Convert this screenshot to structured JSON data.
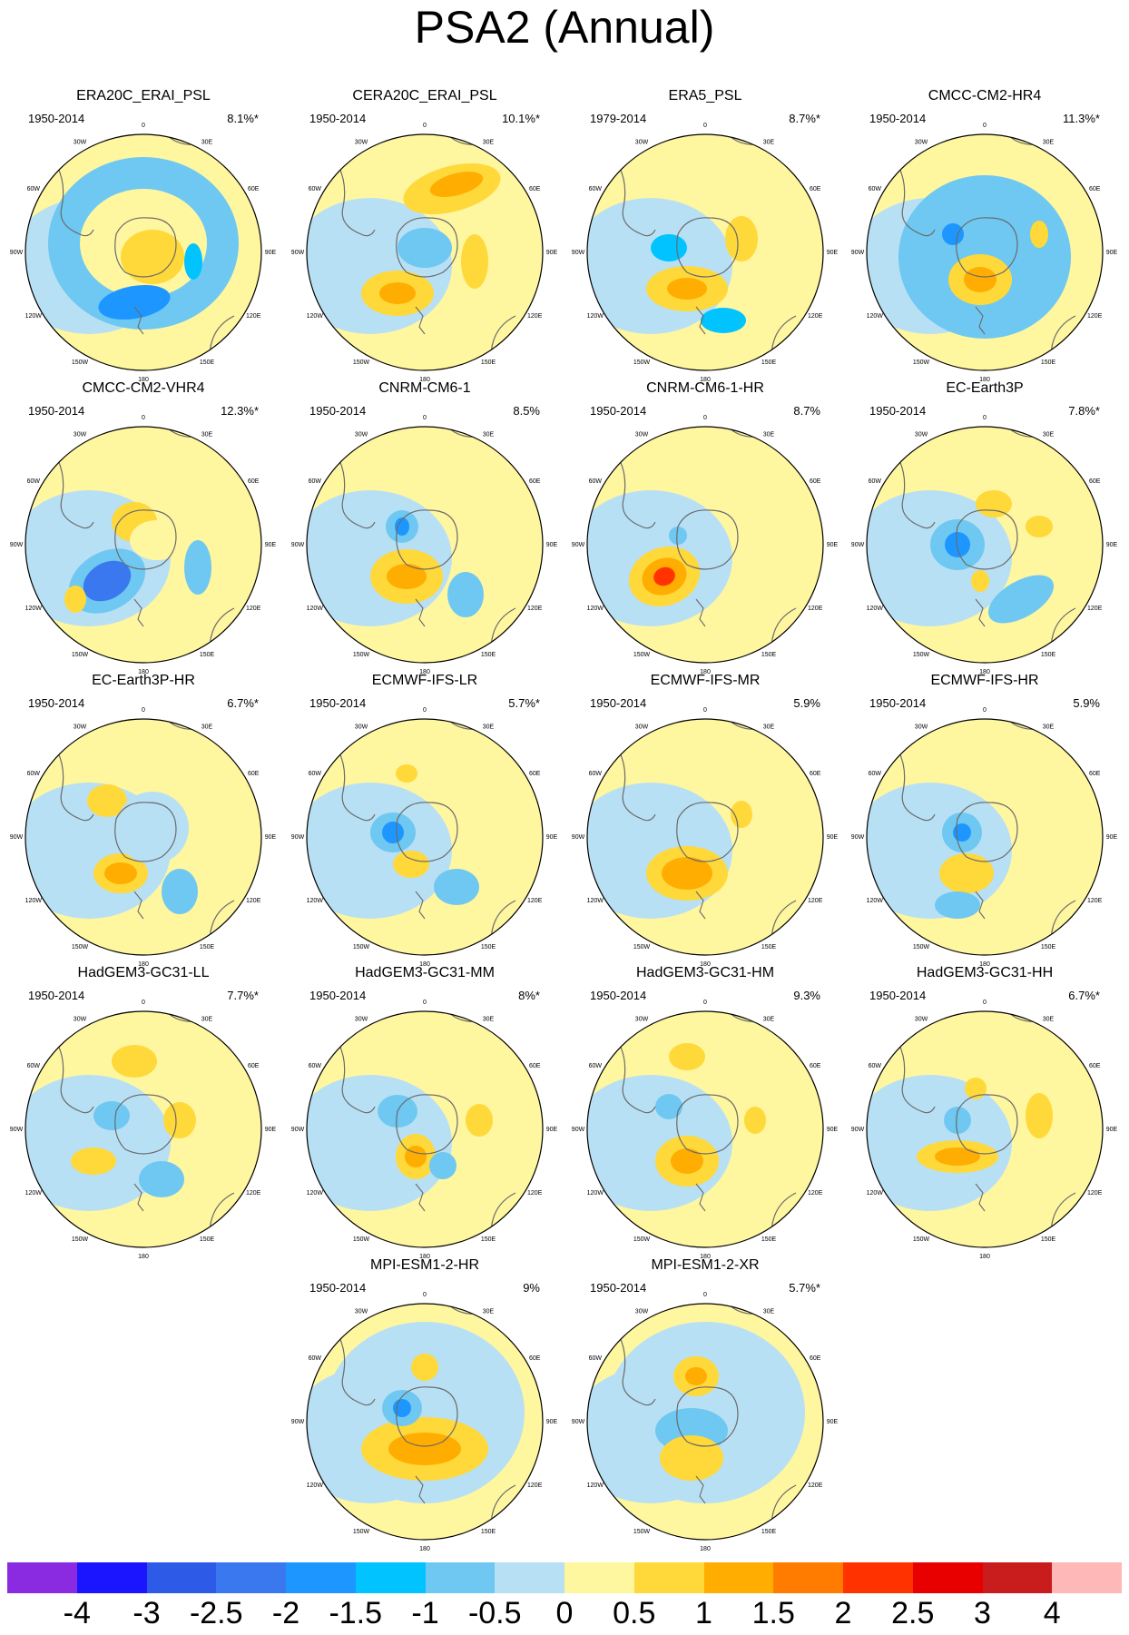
{
  "title": "PSA2 (Annual)",
  "lon_labels": [
    "0",
    "30E",
    "60E",
    "90E",
    "120E",
    "150E",
    "180",
    "150W",
    "120W",
    "90W",
    "60W",
    "30W"
  ],
  "colorbar": {
    "labels": [
      "-4",
      "-3",
      "-2.5",
      "-2",
      "-1.5",
      "-1",
      "-0.5",
      "0",
      "0.5",
      "1",
      "1.5",
      "2",
      "2.5",
      "3",
      "4"
    ],
    "colors": [
      "#8a2be2",
      "#1a14ff",
      "#2d5be8",
      "#3a78f0",
      "#1e96ff",
      "#00c3ff",
      "#6ec8f2",
      "#b8e0f4",
      "#fff6a0",
      "#ffd83a",
      "#ffad00",
      "#ff7c00",
      "#ff3200",
      "#e80000",
      "#c91c1c",
      "#ffb8b8"
    ]
  },
  "panels": [
    {
      "title": "ERA20C_ERAI_PSL",
      "period": "1950-2014",
      "pct": "8.1%*"
    },
    {
      "title": "CERA20C_ERAI_PSL",
      "period": "1950-2014",
      "pct": "10.1%*"
    },
    {
      "title": "ERA5_PSL",
      "period": "1979-2014",
      "pct": "8.7%*"
    },
    {
      "title": "CMCC-CM2-HR4",
      "period": "1950-2014",
      "pct": "11.3%*"
    },
    {
      "title": "CMCC-CM2-VHR4",
      "period": "1950-2014",
      "pct": "12.3%*"
    },
    {
      "title": "CNRM-CM6-1",
      "period": "1950-2014",
      "pct": "8.5%"
    },
    {
      "title": "CNRM-CM6-1-HR",
      "period": "1950-2014",
      "pct": "8.7%"
    },
    {
      "title": "EC-Earth3P",
      "period": "1950-2014",
      "pct": "7.8%*"
    },
    {
      "title": "EC-Earth3P-HR",
      "period": "1950-2014",
      "pct": "6.7%*"
    },
    {
      "title": "ECMWF-IFS-LR",
      "period": "1950-2014",
      "pct": "5.7%*"
    },
    {
      "title": "ECMWF-IFS-MR",
      "period": "1950-2014",
      "pct": "5.9%"
    },
    {
      "title": "ECMWF-IFS-HR",
      "period": "1950-2014",
      "pct": "5.9%"
    },
    {
      "title": "HadGEM3-GC31-LL",
      "period": "1950-2014",
      "pct": "7.7%*"
    },
    {
      "title": "HadGEM3-GC31-MM",
      "period": "1950-2014",
      "pct": "8%*"
    },
    {
      "title": "HadGEM3-GC31-HM",
      "period": "1950-2014",
      "pct": "9.3%"
    },
    {
      "title": "HadGEM3-GC31-HH",
      "period": "1950-2014",
      "pct": "6.7%*"
    },
    {
      "title": "MPI-ESM1-2-HR",
      "period": "1950-2014",
      "pct": "9%"
    },
    {
      "title": "MPI-ESM1-2-XR",
      "period": "1950-2014",
      "pct": "5.7%*"
    }
  ]
}
